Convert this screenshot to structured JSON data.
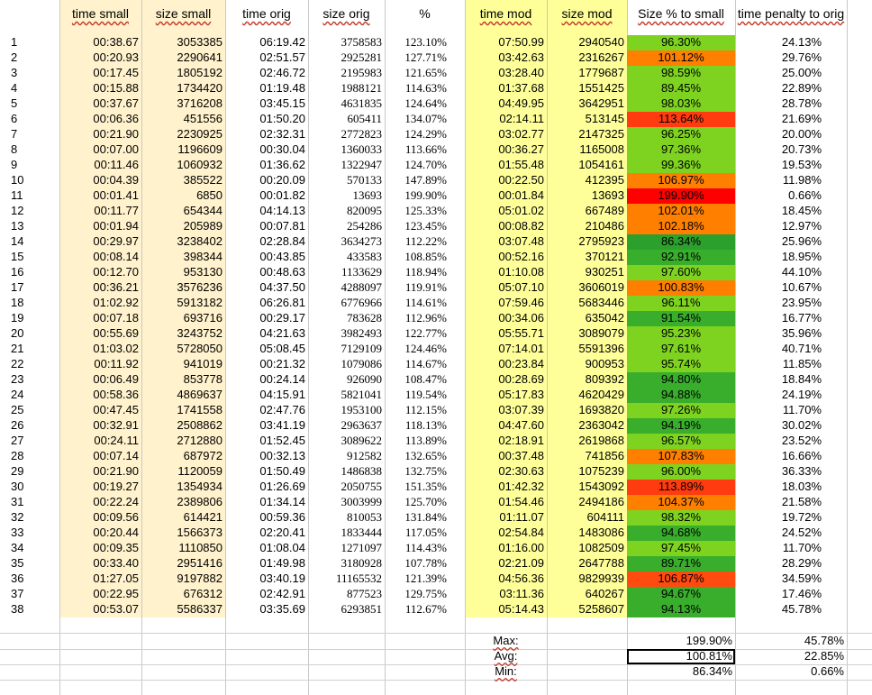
{
  "headers": [
    "time small",
    "size small",
    "time orig",
    "size orig",
    "%",
    "time mod",
    "size mod",
    "Size % to small",
    "time penalty to orig"
  ],
  "rows": [
    {
      "n": "1",
      "ts": "00:38.67",
      "ss": "3053385",
      "to": "06:19.42",
      "so": "3758583",
      "pct": "123.10%",
      "tm": "07:50.99",
      "sm": "2940540",
      "sp": "96.30%",
      "c": "#7ed321",
      "tp": "24.13%"
    },
    {
      "n": "2",
      "ts": "00:20.93",
      "ss": "2290641",
      "to": "02:51.57",
      "so": "2925281",
      "pct": "127.71%",
      "tm": "03:42.63",
      "sm": "2316267",
      "sp": "101.12%",
      "c": "#ff7f00",
      "tp": "29.76%"
    },
    {
      "n": "3",
      "ts": "00:17.45",
      "ss": "1805192",
      "to": "02:46.72",
      "so": "2195983",
      "pct": "121.65%",
      "tm": "03:28.40",
      "sm": "1779687",
      "sp": "98.59%",
      "c": "#7ed321",
      "tp": "25.00%"
    },
    {
      "n": "4",
      "ts": "00:15.88",
      "ss": "1734420",
      "to": "01:19.48",
      "so": "1988121",
      "pct": "114.63%",
      "tm": "01:37.68",
      "sm": "1551425",
      "sp": "89.45%",
      "c": "#7ed321",
      "tp": "22.89%"
    },
    {
      "n": "5",
      "ts": "00:37.67",
      "ss": "3716208",
      "to": "03:45.15",
      "so": "4631835",
      "pct": "124.64%",
      "tm": "04:49.95",
      "sm": "3642951",
      "sp": "98.03%",
      "c": "#7ed321",
      "tp": "28.78%"
    },
    {
      "n": "6",
      "ts": "00:06.36",
      "ss": "451556",
      "to": "01:50.20",
      "so": "605411",
      "pct": "134.07%",
      "tm": "02:14.11",
      "sm": "513145",
      "sp": "113.64%",
      "c": "#ff3b0f",
      "tp": "21.69%"
    },
    {
      "n": "7",
      "ts": "00:21.90",
      "ss": "2230925",
      "to": "02:32.31",
      "so": "2772823",
      "pct": "124.29%",
      "tm": "03:02.77",
      "sm": "2147325",
      "sp": "96.25%",
      "c": "#7ed321",
      "tp": "20.00%"
    },
    {
      "n": "8",
      "ts": "00:07.00",
      "ss": "1196609",
      "to": "00:30.04",
      "so": "1360033",
      "pct": "113.66%",
      "tm": "00:36.27",
      "sm": "1165008",
      "sp": "97.36%",
      "c": "#7ed321",
      "tp": "20.73%"
    },
    {
      "n": "9",
      "ts": "00:11.46",
      "ss": "1060932",
      "to": "01:36.62",
      "so": "1322947",
      "pct": "124.70%",
      "tm": "01:55.48",
      "sm": "1054161",
      "sp": "99.36%",
      "c": "#7ed321",
      "tp": "19.53%"
    },
    {
      "n": "10",
      "ts": "00:04.39",
      "ss": "385522",
      "to": "00:20.09",
      "so": "570133",
      "pct": "147.89%",
      "tm": "00:22.50",
      "sm": "412395",
      "sp": "106.97%",
      "c": "#ff7f00",
      "tp": "11.98%"
    },
    {
      "n": "11",
      "ts": "00:01.41",
      "ss": "6850",
      "to": "00:01.82",
      "so": "13693",
      "pct": "199.90%",
      "tm": "00:01.84",
      "sm": "13693",
      "sp": "199.90%",
      "c": "#ff0000",
      "tp": "0.66%"
    },
    {
      "n": "12",
      "ts": "00:11.77",
      "ss": "654344",
      "to": "04:14.13",
      "so": "820095",
      "pct": "125.33%",
      "tm": "05:01.02",
      "sm": "667489",
      "sp": "102.01%",
      "c": "#ff7f00",
      "tp": "18.45%"
    },
    {
      "n": "13",
      "ts": "00:01.94",
      "ss": "205989",
      "to": "00:07.81",
      "so": "254286",
      "pct": "123.45%",
      "tm": "00:08.82",
      "sm": "210486",
      "sp": "102.18%",
      "c": "#ff7f00",
      "tp": "12.97%"
    },
    {
      "n": "14",
      "ts": "00:29.97",
      "ss": "3238402",
      "to": "02:28.84",
      "so": "3634273",
      "pct": "112.22%",
      "tm": "03:07.48",
      "sm": "2795923",
      "sp": "86.34%",
      "c": "#2ca02c",
      "tp": "25.96%"
    },
    {
      "n": "15",
      "ts": "00:08.14",
      "ss": "398344",
      "to": "00:43.85",
      "so": "433583",
      "pct": "108.85%",
      "tm": "00:52.16",
      "sm": "370121",
      "sp": "92.91%",
      "c": "#39ad2c",
      "tp": "18.95%"
    },
    {
      "n": "16",
      "ts": "00:12.70",
      "ss": "953130",
      "to": "00:48.63",
      "so": "1133629",
      "pct": "118.94%",
      "tm": "01:10.08",
      "sm": "930251",
      "sp": "97.60%",
      "c": "#7ed321",
      "tp": "44.10%"
    },
    {
      "n": "17",
      "ts": "00:36.21",
      "ss": "3576236",
      "to": "04:37.50",
      "so": "4288097",
      "pct": "119.91%",
      "tm": "05:07.10",
      "sm": "3606019",
      "sp": "100.83%",
      "c": "#ff7f00",
      "tp": "10.67%"
    },
    {
      "n": "18",
      "ts": "01:02.92",
      "ss": "5913182",
      "to": "06:26.81",
      "so": "6776966",
      "pct": "114.61%",
      "tm": "07:59.46",
      "sm": "5683446",
      "sp": "96.11%",
      "c": "#7ed321",
      "tp": "23.95%"
    },
    {
      "n": "19",
      "ts": "00:07.18",
      "ss": "693716",
      "to": "00:29.17",
      "so": "783628",
      "pct": "112.96%",
      "tm": "00:34.06",
      "sm": "635042",
      "sp": "91.54%",
      "c": "#39ad2c",
      "tp": "16.77%"
    },
    {
      "n": "20",
      "ts": "00:55.69",
      "ss": "3243752",
      "to": "04:21.63",
      "so": "3982493",
      "pct": "122.77%",
      "tm": "05:55.71",
      "sm": "3089079",
      "sp": "95.23%",
      "c": "#7ed321",
      "tp": "35.96%"
    },
    {
      "n": "21",
      "ts": "01:03.02",
      "ss": "5728050",
      "to": "05:08.45",
      "so": "7129109",
      "pct": "124.46%",
      "tm": "07:14.01",
      "sm": "5591396",
      "sp": "97.61%",
      "c": "#7ed321",
      "tp": "40.71%"
    },
    {
      "n": "22",
      "ts": "00:11.92",
      "ss": "941019",
      "to": "00:21.32",
      "so": "1079086",
      "pct": "114.67%",
      "tm": "00:23.84",
      "sm": "900953",
      "sp": "95.74%",
      "c": "#7ed321",
      "tp": "11.85%"
    },
    {
      "n": "23",
      "ts": "00:06.49",
      "ss": "853778",
      "to": "00:24.14",
      "so": "926090",
      "pct": "108.47%",
      "tm": "00:28.69",
      "sm": "809392",
      "sp": "94.80%",
      "c": "#39ad2c",
      "tp": "18.84%"
    },
    {
      "n": "24",
      "ts": "00:58.36",
      "ss": "4869637",
      "to": "04:15.91",
      "so": "5821041",
      "pct": "119.54%",
      "tm": "05:17.83",
      "sm": "4620429",
      "sp": "94.88%",
      "c": "#39ad2c",
      "tp": "24.19%"
    },
    {
      "n": "25",
      "ts": "00:47.45",
      "ss": "1741558",
      "to": "02:47.76",
      "so": "1953100",
      "pct": "112.15%",
      "tm": "03:07.39",
      "sm": "1693820",
      "sp": "97.26%",
      "c": "#7ed321",
      "tp": "11.70%"
    },
    {
      "n": "26",
      "ts": "00:32.91",
      "ss": "2508862",
      "to": "03:41.19",
      "so": "2963637",
      "pct": "118.13%",
      "tm": "04:47.60",
      "sm": "2363042",
      "sp": "94.19%",
      "c": "#39ad2c",
      "tp": "30.02%"
    },
    {
      "n": "27",
      "ts": "00:24.11",
      "ss": "2712880",
      "to": "01:52.45",
      "so": "3089622",
      "pct": "113.89%",
      "tm": "02:18.91",
      "sm": "2619868",
      "sp": "96.57%",
      "c": "#7ed321",
      "tp": "23.52%"
    },
    {
      "n": "28",
      "ts": "00:07.14",
      "ss": "687972",
      "to": "00:32.13",
      "so": "912582",
      "pct": "132.65%",
      "tm": "00:37.48",
      "sm": "741856",
      "sp": "107.83%",
      "c": "#ff7f00",
      "tp": "16.66%"
    },
    {
      "n": "29",
      "ts": "00:21.90",
      "ss": "1120059",
      "to": "01:50.49",
      "so": "1486838",
      "pct": "132.75%",
      "tm": "02:30.63",
      "sm": "1075239",
      "sp": "96.00%",
      "c": "#7ed321",
      "tp": "36.33%"
    },
    {
      "n": "30",
      "ts": "00:19.27",
      "ss": "1354934",
      "to": "01:26.69",
      "so": "2050755",
      "pct": "151.35%",
      "tm": "01:42.32",
      "sm": "1543092",
      "sp": "113.89%",
      "c": "#ff3b0f",
      "tp": "18.03%"
    },
    {
      "n": "31",
      "ts": "00:22.24",
      "ss": "2389806",
      "to": "01:34.14",
      "so": "3003999",
      "pct": "125.70%",
      "tm": "01:54.46",
      "sm": "2494186",
      "sp": "104.37%",
      "c": "#ff7f00",
      "tp": "21.58%"
    },
    {
      "n": "32",
      "ts": "00:09.56",
      "ss": "614421",
      "to": "00:59.36",
      "so": "810053",
      "pct": "131.84%",
      "tm": "01:11.07",
      "sm": "604111",
      "sp": "98.32%",
      "c": "#7ed321",
      "tp": "19.72%"
    },
    {
      "n": "33",
      "ts": "00:20.44",
      "ss": "1566373",
      "to": "02:20.41",
      "so": "1833444",
      "pct": "117.05%",
      "tm": "02:54.84",
      "sm": "1483086",
      "sp": "94.68%",
      "c": "#39ad2c",
      "tp": "24.52%"
    },
    {
      "n": "34",
      "ts": "00:09.35",
      "ss": "1110850",
      "to": "01:08.04",
      "so": "1271097",
      "pct": "114.43%",
      "tm": "01:16.00",
      "sm": "1082509",
      "sp": "97.45%",
      "c": "#7ed321",
      "tp": "11.70%"
    },
    {
      "n": "35",
      "ts": "00:33.40",
      "ss": "2951416",
      "to": "01:49.98",
      "so": "3180928",
      "pct": "107.78%",
      "tm": "02:21.09",
      "sm": "2647788",
      "sp": "89.71%",
      "c": "#39ad2c",
      "tp": "28.29%"
    },
    {
      "n": "36",
      "ts": "01:27.05",
      "ss": "9197882",
      "to": "03:40.19",
      "so": "11165532",
      "pct": "121.39%",
      "tm": "04:56.36",
      "sm": "9829939",
      "sp": "106.87%",
      "c": "#ff4a10",
      "tp": "34.59%"
    },
    {
      "n": "37",
      "ts": "00:22.95",
      "ss": "676312",
      "to": "02:42.91",
      "so": "877523",
      "pct": "129.75%",
      "tm": "03:11.36",
      "sm": "640267",
      "sp": "94.67%",
      "c": "#39ad2c",
      "tp": "17.46%"
    },
    {
      "n": "38",
      "ts": "00:53.07",
      "ss": "5586337",
      "to": "03:35.69",
      "so": "6293851",
      "pct": "112.67%",
      "tm": "05:14.43",
      "sm": "5258607",
      "sp": "94.13%",
      "c": "#39ad2c",
      "tp": "45.78%"
    }
  ],
  "summary": [
    {
      "label": "Max:",
      "sp": "199.90%",
      "tp": "45.78%"
    },
    {
      "label": "Avg:",
      "sp": "100.81%",
      "tp": "22.85%"
    },
    {
      "label": "Min:",
      "sp": "86.34%",
      "tp": "0.66%"
    }
  ],
  "colors": {
    "band_small": "#fff2cc",
    "band_mod": "#ffff99",
    "grid": "#c8c8c8"
  }
}
